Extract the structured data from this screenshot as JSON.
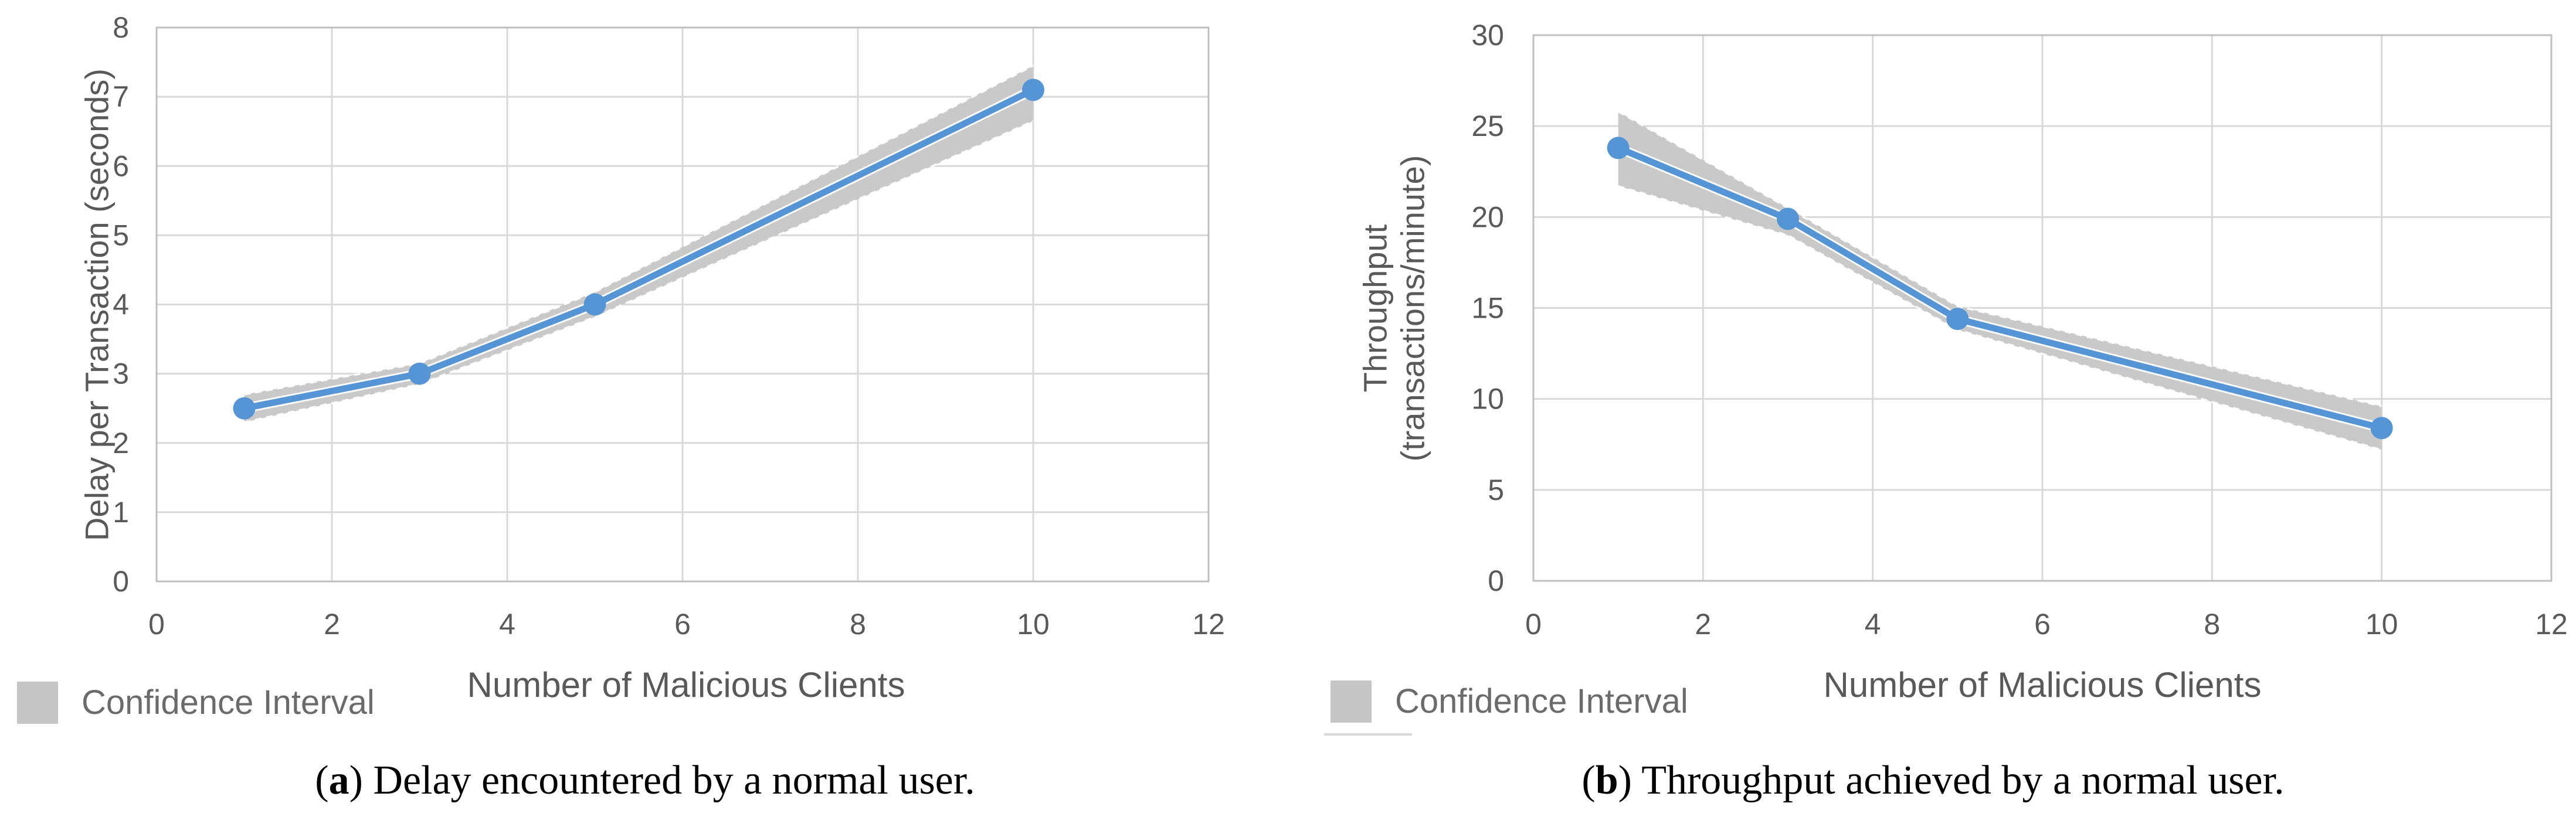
{
  "figure": {
    "panels": [
      {
        "name": "a",
        "legend_label": "Confidence Interval",
        "caption": {
          "open": "(",
          "letter": "a",
          "close": ")",
          "text": "Delay encountered by a normal user."
        }
      },
      {
        "name": "b",
        "legend_label": "Confidence Interval",
        "caption": {
          "open": "(",
          "letter": "b",
          "close": ")",
          "text": "Throughput achieved by a normal user."
        }
      }
    ]
  },
  "colors": {
    "line": "#5695D5",
    "marker": "#5695D5",
    "band": "#C9C9C9",
    "band_edge": "#FFFFFF",
    "legend_swatch": "#C6C6C6",
    "grid": "#D9D9D9",
    "plot_border": "#BFBFBF",
    "tick_text": "#595959",
    "axis_title_text": "#595959",
    "legend_text": "#6B6B6B",
    "caption_text": "#000000"
  },
  "chart_data": [
    {
      "type": "line",
      "title": "",
      "xlabel": "Number of Malicious Clients",
      "ylabel": "Delay per Transaction (seconds)",
      "ylabel_lines": [
        "Delay per Transaction (seconds)"
      ],
      "x": [
        1,
        3,
        5,
        10
      ],
      "series": [
        {
          "name": "Delay per Transaction",
          "values": [
            2.5,
            3.0,
            4.0,
            7.1
          ]
        }
      ],
      "confidence_band": {
        "upper": [
          2.7,
          3.15,
          4.18,
          7.45
        ],
        "lower": [
          2.3,
          2.85,
          3.82,
          6.65
        ]
      },
      "xlim": [
        0,
        12
      ],
      "ylim": [
        0,
        8
      ],
      "xticks": [
        0,
        2,
        4,
        6,
        8,
        10,
        12
      ],
      "yticks": [
        0,
        1,
        2,
        3,
        4,
        5,
        6,
        7,
        8
      ],
      "grid": true,
      "legend": [
        "Confidence Interval"
      ],
      "legend_position": "bottom-left"
    },
    {
      "type": "line",
      "title": "",
      "xlabel": "Number of Malicious Clients",
      "ylabel": "Throughput (transactions/minute)",
      "ylabel_lines": [
        "Throughput",
        "(transactions/minute)"
      ],
      "x": [
        1,
        3,
        5,
        10
      ],
      "series": [
        {
          "name": "Throughput",
          "values": [
            23.8,
            19.9,
            14.4,
            8.4
          ]
        }
      ],
      "confidence_band": {
        "upper": [
          25.8,
          20.5,
          15.1,
          9.6
        ],
        "lower": [
          21.7,
          19.0,
          13.8,
          7.2
        ]
      },
      "xlim": [
        0,
        12
      ],
      "ylim": [
        0,
        30
      ],
      "xticks": [
        0,
        2,
        4,
        6,
        8,
        10,
        12
      ],
      "yticks": [
        0,
        5,
        10,
        15,
        20,
        25,
        30
      ],
      "grid": true,
      "legend": [
        "Confidence Interval"
      ],
      "legend_position": "bottom-left"
    }
  ]
}
